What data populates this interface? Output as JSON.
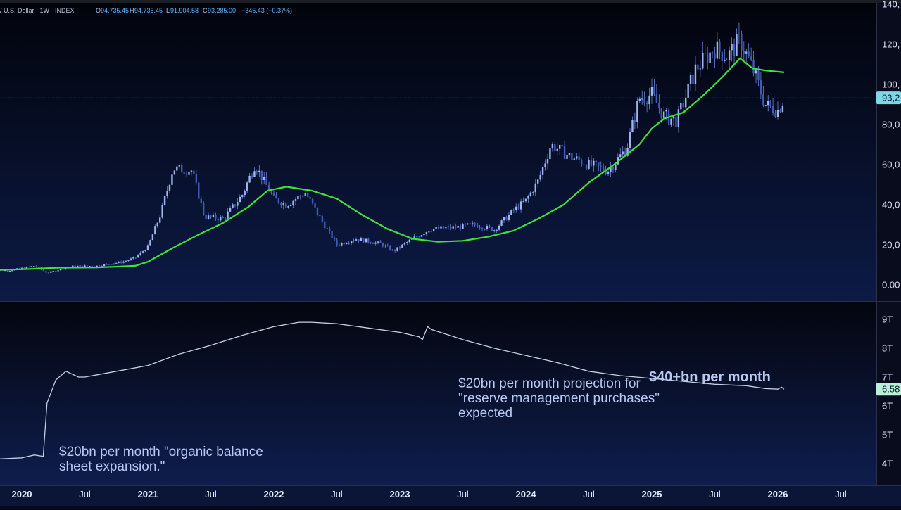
{
  "header": {
    "symbol_text": "/ U.S. Dollar · 1W · INDEX",
    "o_label": "O",
    "o_val": "94,735.45",
    "h_label": "H",
    "h_val": "94,735.45",
    "l_label": "L",
    "l_val": "91,904.58",
    "c_label": "C",
    "c_val": "93,285.00",
    "change": "−345.43 (−0.37%)"
  },
  "price_axis": {
    "ticks": [
      {
        "value": 140000,
        "label": "140,"
      },
      {
        "value": 120000,
        "label": "120,"
      },
      {
        "value": 100000,
        "label": "100,"
      },
      {
        "value": 80000,
        "label": "80,0"
      },
      {
        "value": 60000,
        "label": "60,0"
      },
      {
        "value": 40000,
        "label": "40,0"
      },
      {
        "value": 20000,
        "label": "20,0"
      },
      {
        "value": 0,
        "label": "0.00"
      }
    ],
    "last_price": 93285,
    "last_price_label": "93,2"
  },
  "bs_axis": {
    "ticks": [
      {
        "value": 9,
        "label": "9T"
      },
      {
        "value": 8,
        "label": "8T"
      },
      {
        "value": 7,
        "label": "7T"
      },
      {
        "value": 6,
        "label": "6T"
      },
      {
        "value": 5,
        "label": "5T"
      },
      {
        "value": 4,
        "label": "4T"
      }
    ],
    "last_value": 6.58,
    "last_value_label": "6.58"
  },
  "time_axis": [
    {
      "t": 2020.0,
      "label": "2020",
      "year": true
    },
    {
      "t": 2020.5,
      "label": "Jul",
      "year": false
    },
    {
      "t": 2021.0,
      "label": "2021",
      "year": true
    },
    {
      "t": 2021.5,
      "label": "Jul",
      "year": false
    },
    {
      "t": 2022.0,
      "label": "2022",
      "year": true
    },
    {
      "t": 2022.5,
      "label": "Jul",
      "year": false
    },
    {
      "t": 2023.0,
      "label": "2023",
      "year": true
    },
    {
      "t": 2023.5,
      "label": "Jul",
      "year": false
    },
    {
      "t": 2024.0,
      "label": "2024",
      "year": true
    },
    {
      "t": 2024.5,
      "label": "Jul",
      "year": false
    },
    {
      "t": 2025.0,
      "label": "2025",
      "year": true
    },
    {
      "t": 2025.5,
      "label": "Jul",
      "year": false
    },
    {
      "t": 2026.0,
      "label": "2026",
      "year": true
    },
    {
      "t": 2026.5,
      "label": "Jul",
      "year": false
    }
  ],
  "annotations": {
    "left_line1": "$20bn per month \"organic balance",
    "left_line2": "sheet expansion.\"",
    "right_line1": "$20bn per month projection for",
    "right_line2": "\"reserve management purchases\"",
    "right_line3": "expected",
    "bold": "$40+bn per month"
  },
  "colors": {
    "candle": "#6b86d8",
    "ma": "#3de23a",
    "bs_line": "#c4d1e0",
    "last_price_bg": "#7fd6e6",
    "last_bs_bg": "#b8f0d8",
    "divider": "#2a3048"
  },
  "chart_data": [
    {
      "type": "line",
      "title": "",
      "xlabel": "",
      "ylabel": "",
      "ylim": [
        0,
        140000
      ],
      "series": [
        {
          "x": [
            2019.75,
            2019.9,
            2020.1,
            2020.2,
            2020.4,
            2020.6,
            2020.8,
            2020.9,
            2021.0,
            2021.1,
            2021.2,
            2021.35,
            2021.45,
            2021.6,
            2021.75,
            2021.85,
            2022.0,
            2022.1,
            2022.25,
            2022.4,
            2022.5,
            2022.65,
            2022.85,
            2022.95,
            2023.1,
            2023.25,
            2023.4,
            2023.6,
            2023.75,
            2023.9,
            2024.0,
            2024.1,
            2024.2,
            2024.35,
            2024.5,
            2024.65,
            2024.8,
            2024.9,
            2025.0,
            2025.1,
            2025.2,
            2025.35,
            2025.5,
            2025.6,
            2025.7,
            2025.8,
            2025.9,
            2026.0,
            2026.05
          ],
          "values": [
            7500,
            7200,
            9500,
            6000,
            9300,
            9500,
            11500,
            13500,
            19000,
            35000,
            58000,
            57000,
            34000,
            33000,
            45000,
            60000,
            43000,
            40000,
            46000,
            30000,
            20000,
            23000,
            20500,
            16800,
            23000,
            28000,
            28500,
            30000,
            27500,
            37000,
            42000,
            52000,
            70000,
            64000,
            60000,
            57000,
            68000,
            93000,
            95000,
            84000,
            82000,
            108000,
            118000,
            114000,
            122000,
            108000,
            90000,
            87000,
            93285
          ]
        },
        {
          "x": [
            2019.75,
            2020.0,
            2020.3,
            2020.6,
            2020.9,
            2021.0,
            2021.2,
            2021.4,
            2021.6,
            2021.8,
            2021.95,
            2022.1,
            2022.3,
            2022.5,
            2022.7,
            2022.9,
            2023.1,
            2023.3,
            2023.5,
            2023.7,
            2023.9,
            2024.1,
            2024.3,
            2024.5,
            2024.7,
            2024.9,
            2025.0,
            2025.1,
            2025.25,
            2025.4,
            2025.55,
            2025.7,
            2025.8,
            2025.9,
            2026.05
          ],
          "values": [
            7400,
            7800,
            8600,
            8700,
            9500,
            11500,
            18500,
            25000,
            31000,
            39000,
            47000,
            49000,
            47000,
            43000,
            35000,
            28000,
            23000,
            21500,
            22000,
            24000,
            27000,
            33000,
            40000,
            51000,
            60000,
            70000,
            78000,
            83000,
            86000,
            94000,
            103000,
            113000,
            108000,
            107000,
            106000
          ]
        }
      ]
    },
    {
      "type": "line",
      "title": "",
      "xlabel": "",
      "ylabel": "",
      "ylim": [
        3.7,
        9.4
      ],
      "series": [
        {
          "x": [
            2019.75,
            2020.0,
            2020.1,
            2020.17,
            2020.2,
            2020.27,
            2020.35,
            2020.45,
            2020.5,
            2020.75,
            2021.0,
            2021.25,
            2021.5,
            2021.75,
            2022.0,
            2022.2,
            2022.3,
            2022.5,
            2022.75,
            2023.0,
            2023.15,
            2023.18,
            2023.22,
            2023.25,
            2023.5,
            2023.75,
            2024.0,
            2024.25,
            2024.5,
            2024.75,
            2025.0,
            2025.25,
            2025.5,
            2025.75,
            2025.9,
            2026.0,
            2026.03,
            2026.05
          ],
          "values": [
            4.15,
            4.2,
            4.3,
            4.25,
            6.1,
            6.9,
            7.2,
            7.0,
            7.0,
            7.2,
            7.4,
            7.8,
            8.1,
            8.45,
            8.75,
            8.9,
            8.9,
            8.85,
            8.7,
            8.55,
            8.4,
            8.3,
            8.75,
            8.65,
            8.3,
            8.0,
            7.75,
            7.5,
            7.2,
            7.05,
            6.95,
            6.85,
            6.75,
            6.7,
            6.6,
            6.58,
            6.65,
            6.58
          ]
        }
      ]
    }
  ]
}
